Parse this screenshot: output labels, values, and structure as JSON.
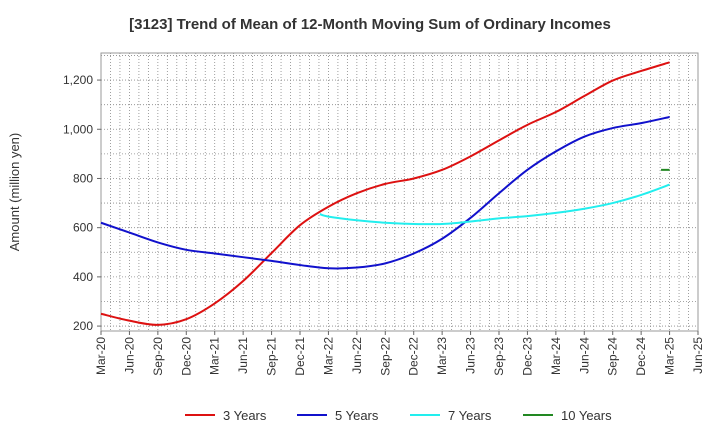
{
  "chart_data": {
    "type": "line",
    "title": "[3123]  Trend of Mean of 12-Month Moving Sum of Ordinary Incomes",
    "xlabel": "",
    "ylabel": "Amount (million yen)",
    "ylim": [
      180,
      1310
    ],
    "yticks": [
      200,
      400,
      600,
      800,
      1000,
      1200
    ],
    "ytick_labels": [
      "200",
      "400",
      "600",
      "800",
      "1,000",
      "1,200"
    ],
    "x_tick_labels": [
      "Mar-20",
      "Jun-20",
      "Sep-20",
      "Dec-20",
      "Mar-21",
      "Jun-21",
      "Sep-21",
      "Dec-21",
      "Mar-22",
      "Jun-22",
      "Sep-22",
      "Dec-22",
      "Mar-23",
      "Jun-23",
      "Sep-23",
      "Dec-23",
      "Mar-24",
      "Jun-24",
      "Sep-24",
      "Dec-24",
      "Mar-25",
      "Jun-25"
    ],
    "grid": true,
    "legend_position": "bottom",
    "series": [
      {
        "name": "3 Years",
        "color": "#dd1111",
        "x": [
          0,
          1,
          2,
          3,
          4,
          5,
          6,
          7,
          8,
          9,
          10,
          11,
          12,
          13,
          14,
          15,
          16,
          17,
          18,
          19,
          20
        ],
        "values": [
          250,
          222,
          205,
          228,
          292,
          383,
          497,
          610,
          685,
          740,
          778,
          800,
          835,
          890,
          955,
          1018,
          1070,
          1135,
          1198,
          1237,
          1272
        ]
      },
      {
        "name": "5 Years",
        "color": "#1111cc",
        "x": [
          0,
          1,
          2,
          3,
          4,
          5,
          6,
          7,
          8,
          9,
          10,
          11,
          12,
          13,
          14,
          15,
          16,
          17,
          18,
          19,
          20
        ],
        "values": [
          620,
          580,
          540,
          510,
          495,
          480,
          465,
          448,
          435,
          438,
          455,
          495,
          555,
          640,
          740,
          835,
          910,
          970,
          1005,
          1025,
          1050
        ]
      },
      {
        "name": "7 Years",
        "color": "#22eeee",
        "x": [
          7.7,
          8,
          9,
          10,
          11,
          12,
          13,
          14,
          15,
          16,
          17,
          18,
          19,
          20
        ],
        "values": [
          655,
          645,
          630,
          620,
          615,
          615,
          625,
          638,
          647,
          660,
          677,
          700,
          733,
          775
        ]
      },
      {
        "name": "10 Years",
        "color": "#228822",
        "x": [
          19.7,
          20
        ],
        "values": [
          835,
          835
        ]
      }
    ]
  }
}
